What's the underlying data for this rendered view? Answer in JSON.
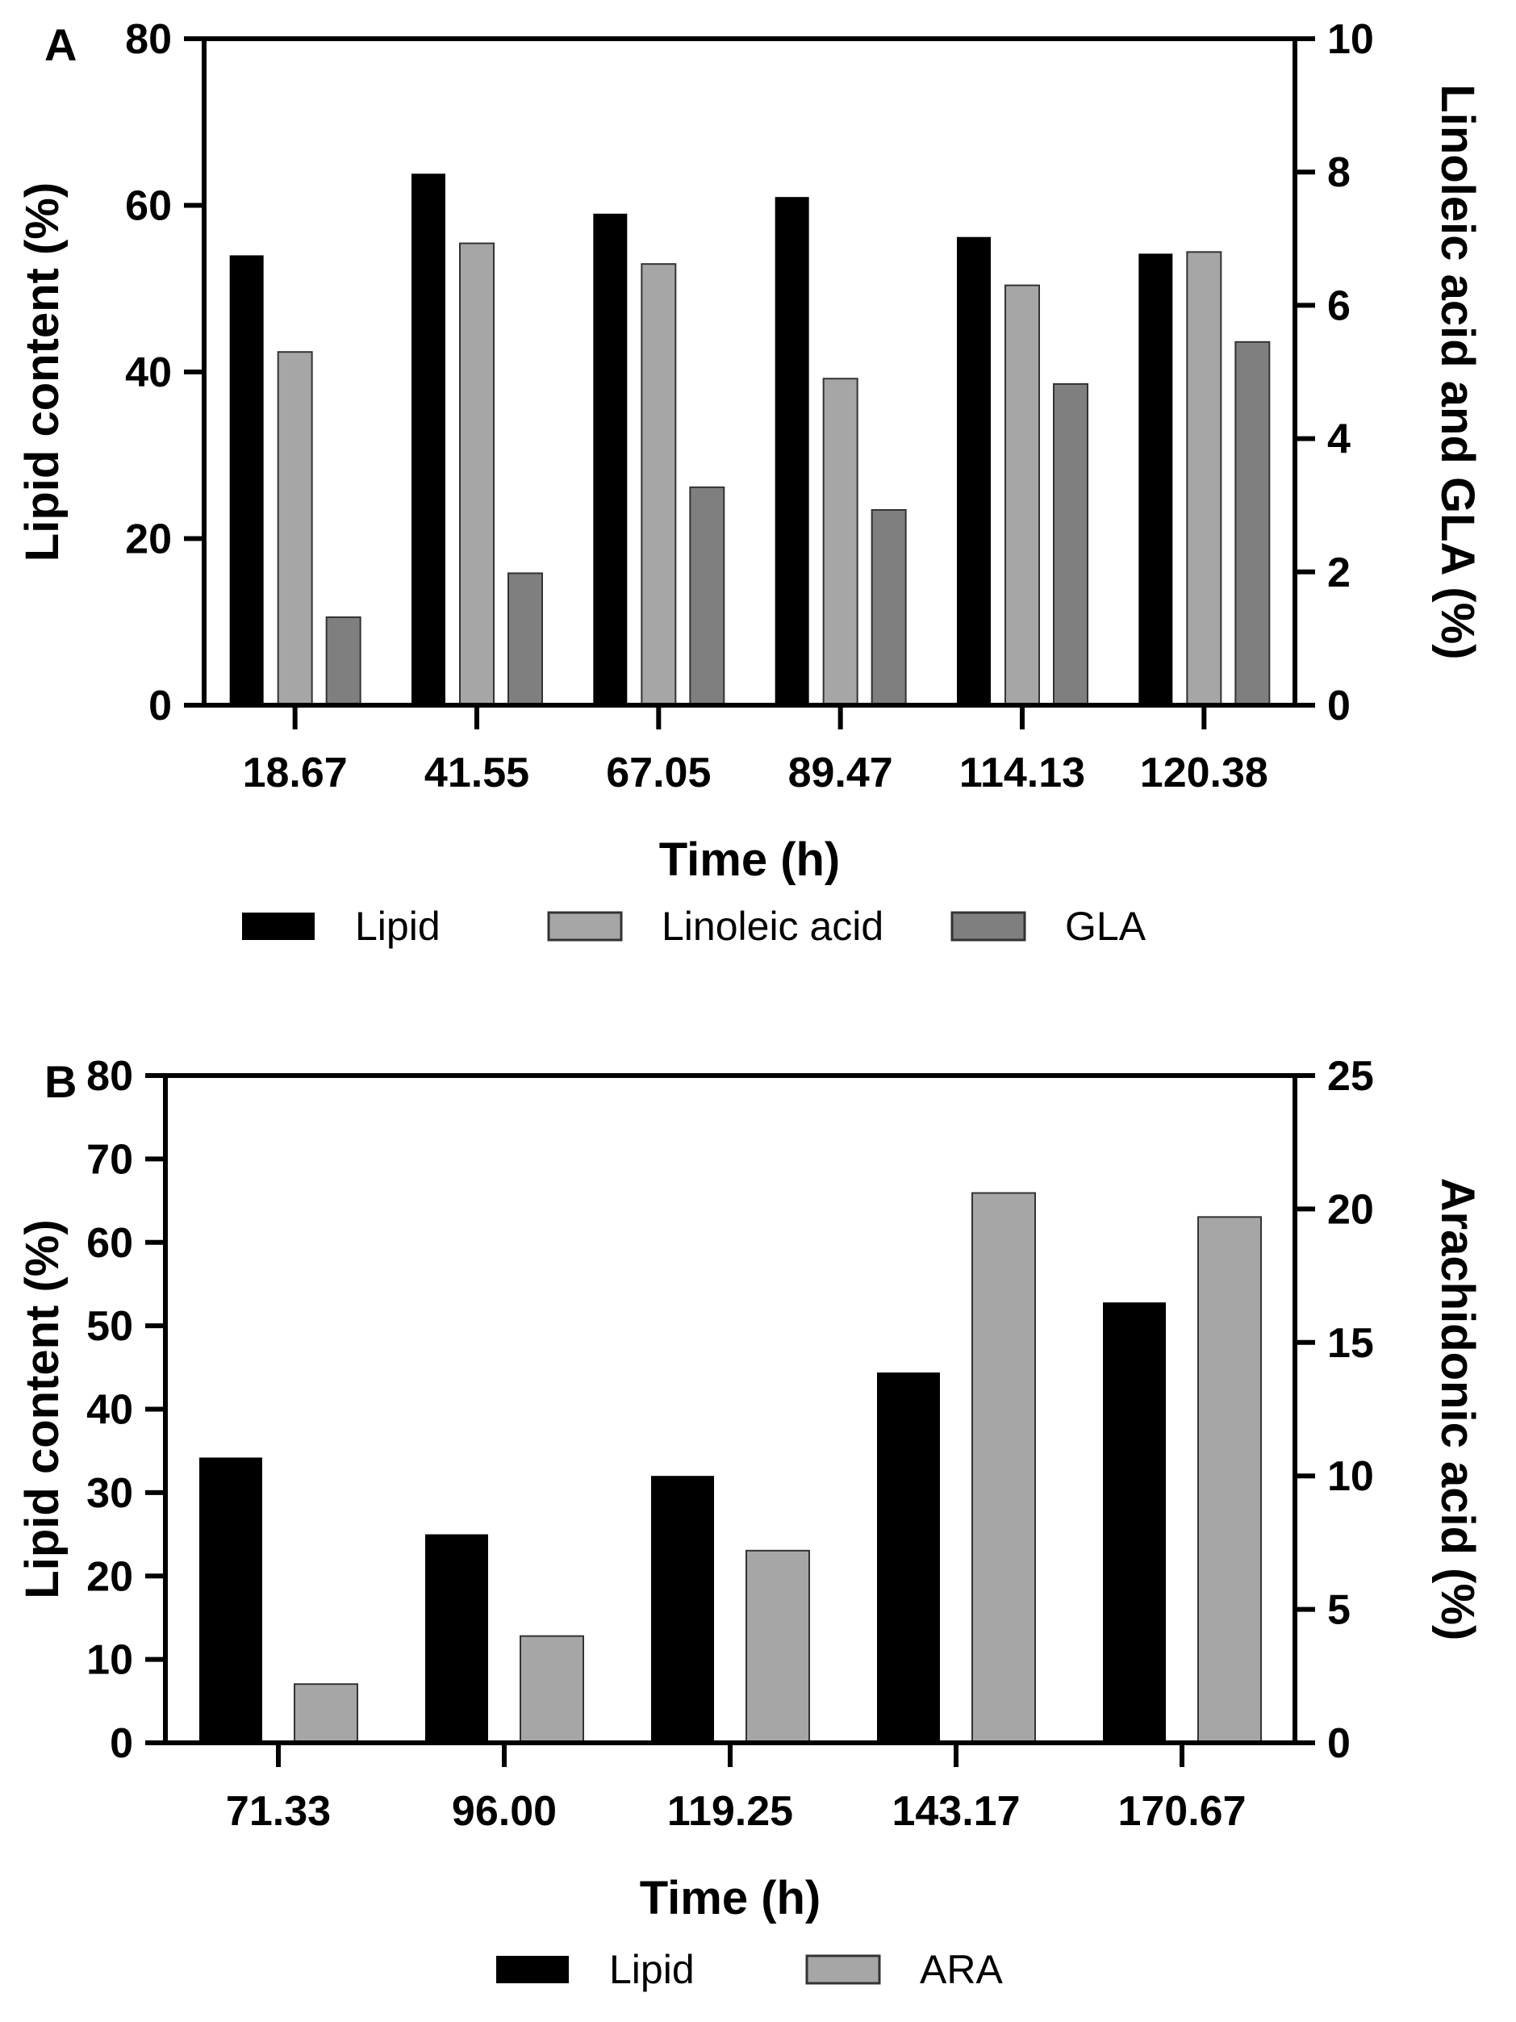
{
  "chart_data": [
    {
      "type": "bar",
      "panel_label": "A",
      "xlabel": "Time (h)",
      "ylabel": "Lipid content (%)",
      "y2label": "Linoleic acid and GLA (%)",
      "categories": [
        "18.67",
        "41.55",
        "67.05",
        "89.47",
        "114.13",
        "120.38"
      ],
      "ylim": [
        0,
        80
      ],
      "y2lim": [
        0,
        10
      ],
      "yticks": [
        0,
        20,
        40,
        60,
        80
      ],
      "y2ticks": [
        0,
        2,
        4,
        6,
        8,
        10
      ],
      "legend_position": "bottom",
      "series": [
        {
          "name": "Lipid",
          "axis": "left",
          "color": "#000000",
          "values": [
            54,
            63.8,
            59,
            61,
            56.2,
            54.2
          ]
        },
        {
          "name": "Linoleic acid",
          "axis": "right",
          "color": "#a6a6a6",
          "values": [
            5.3,
            6.93,
            6.62,
            4.9,
            6.3,
            6.8
          ]
        },
        {
          "name": "GLA",
          "axis": "right",
          "color": "#7f7f7f",
          "values": [
            1.32,
            1.98,
            3.27,
            2.93,
            4.82,
            5.45
          ]
        }
      ]
    },
    {
      "type": "bar",
      "panel_label": "B",
      "xlabel": "Time (h)",
      "ylabel": "Lipid content (%)",
      "y2label": "Arachidonic acid (%)",
      "categories": [
        "71.33",
        "96.00",
        "119.25",
        "143.17",
        "170.67"
      ],
      "ylim": [
        0,
        80
      ],
      "y2lim": [
        0,
        25
      ],
      "yticks": [
        0,
        10,
        20,
        30,
        40,
        50,
        60,
        70,
        80
      ],
      "y2ticks": [
        0,
        5,
        10,
        15,
        20,
        25
      ],
      "legend_position": "bottom",
      "series": [
        {
          "name": "Lipid",
          "axis": "left",
          "color": "#000000",
          "values": [
            34.2,
            25,
            32,
            44.4,
            52.8
          ]
        },
        {
          "name": "ARA",
          "axis": "right",
          "color": "#a6a6a6",
          "values": [
            2.2,
            4,
            7.2,
            20.6,
            19.7
          ]
        }
      ]
    }
  ]
}
